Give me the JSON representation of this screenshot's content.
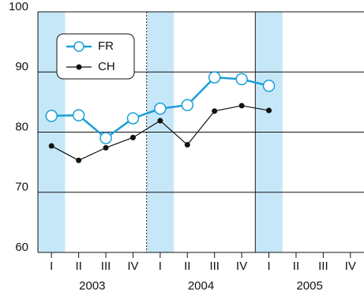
{
  "chart_data": {
    "type": "line",
    "categories": [
      "I",
      "II",
      "III",
      "IV",
      "I",
      "II",
      "III",
      "IV",
      "I",
      "II",
      "III",
      "IV"
    ],
    "year_groups": [
      "2003",
      "2004",
      "2005"
    ],
    "series": [
      {
        "name": "FR",
        "color": "#1a9fd9",
        "values": [
          82.7,
          82.8,
          79.0,
          82.3,
          83.9,
          84.5,
          89.1,
          88.8,
          87.7,
          null,
          null,
          null
        ]
      },
      {
        "name": "CH",
        "color": "#111111",
        "values": [
          77.7,
          75.3,
          77.4,
          79.1,
          81.9,
          77.9,
          83.5,
          84.4,
          83.6,
          null,
          null,
          null
        ]
      }
    ],
    "ylim": [
      60,
      100
    ],
    "yticks": [
      60,
      70,
      80,
      90,
      100
    ],
    "grid": true,
    "legend": "top-left"
  }
}
